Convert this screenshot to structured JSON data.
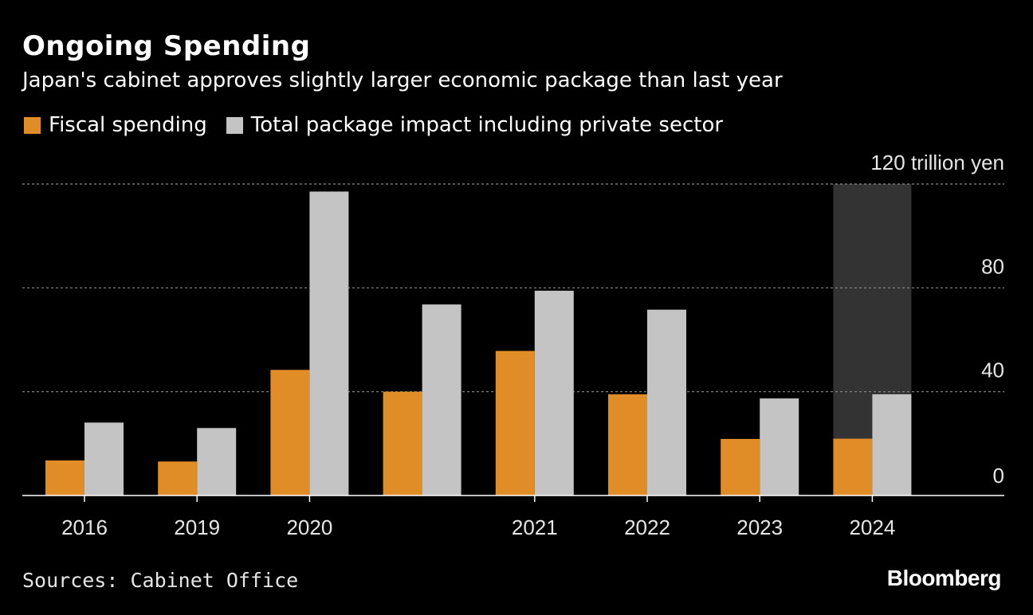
{
  "header": {
    "title": "Ongoing Spending",
    "subtitle": "Japan's cabinet approves slightly larger economic package than last year"
  },
  "legend": [
    {
      "label": "Fiscal spending",
      "color": "#e08c27"
    },
    {
      "label": "Total package impact including private sector",
      "color": "#c4c4c4"
    }
  ],
  "footer": {
    "source": "Sources: Cabinet Office",
    "brand": "Bloomberg"
  },
  "chart_data": {
    "type": "bar",
    "categories": [
      "2016",
      "2019",
      "2020",
      "",
      "2021",
      "2022",
      "2023",
      "2024"
    ],
    "series": [
      {
        "name": "Fiscal spending",
        "color": "#e08c27",
        "values": [
          13.5,
          13.1,
          48.4,
          40.0,
          55.7,
          39.0,
          21.8,
          21.9
        ]
      },
      {
        "name": "Total package impact including private sector",
        "color": "#c4c4c4",
        "values": [
          28.1,
          26.0,
          117.1,
          73.6,
          78.9,
          71.6,
          37.4,
          39.0
        ]
      }
    ],
    "y_unit_label": "120 trillion yen",
    "y_ticks": [
      0,
      40,
      80,
      120
    ],
    "y_tick_labels": [
      "0",
      "40",
      "80",
      "120 trillion yen"
    ],
    "ylim": [
      0,
      120
    ],
    "highlight_category": "2024",
    "highlight_color": "#333333",
    "grid": true,
    "legend_position": "top-left"
  }
}
